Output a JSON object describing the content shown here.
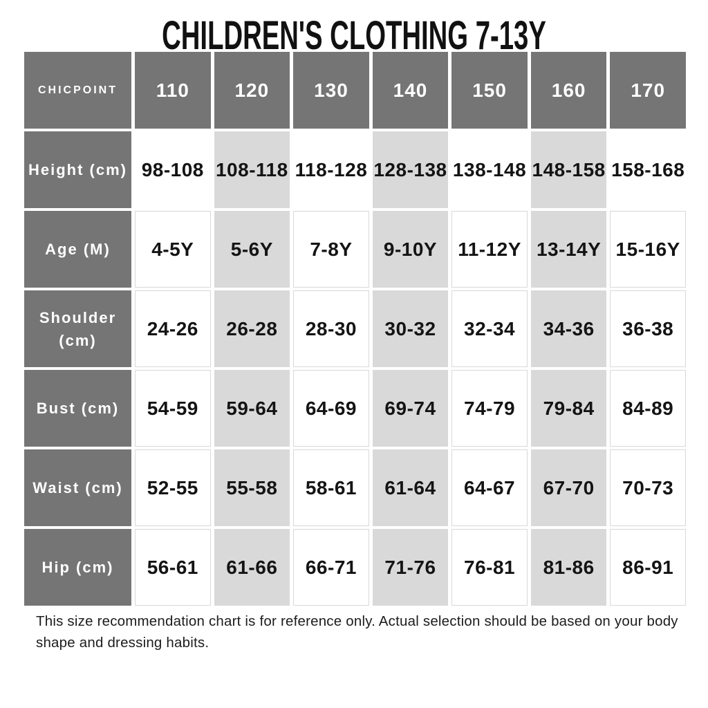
{
  "chart_data": {
    "type": "table",
    "title": "CHILDREN'S CLOTHING 7-13Y",
    "columns": [
      "CHICPOINT",
      "110",
      "120",
      "130",
      "140",
      "150",
      "160",
      "170"
    ],
    "rows": [
      {
        "label": "Height (cm)",
        "values": [
          "98-108",
          "108-118",
          "118-128",
          "128-138",
          "138-148",
          "148-158",
          "158-168"
        ]
      },
      {
        "label": "Age (M)",
        "values": [
          "4-5Y",
          "5-6Y",
          "7-8Y",
          "9-10Y",
          "11-12Y",
          "13-14Y",
          "15-16Y"
        ]
      },
      {
        "label": "Shoulder (cm)",
        "values": [
          "24-26",
          "26-28",
          "28-30",
          "30-32",
          "32-34",
          "34-36",
          "36-38"
        ]
      },
      {
        "label": "Bust (cm)",
        "values": [
          "54-59",
          "59-64",
          "64-69",
          "69-74",
          "74-79",
          "79-84",
          "84-89"
        ]
      },
      {
        "label": "Waist (cm)",
        "values": [
          "52-55",
          "55-58",
          "58-61",
          "61-64",
          "64-67",
          "67-70",
          "70-73"
        ]
      },
      {
        "label": "Hip (cm)",
        "values": [
          "56-61",
          "61-66",
          "66-71",
          "71-76",
          "76-81",
          "81-86",
          "86-91"
        ]
      }
    ],
    "shaded_columns": [
      "120",
      "140",
      "160"
    ],
    "footnote": "This size recommendation chart is for reference only. Actual selection should be based on your body shape and dressing habits.",
    "layout_hints": {
      "header_style": "dark-gray row and label column",
      "grid": "white gaps between cells"
    },
    "colors": {
      "header_bg": "#757575",
      "shaded_bg": "#d9d9d9",
      "cell_border": "#d8d8d8",
      "text": "#161616"
    }
  }
}
